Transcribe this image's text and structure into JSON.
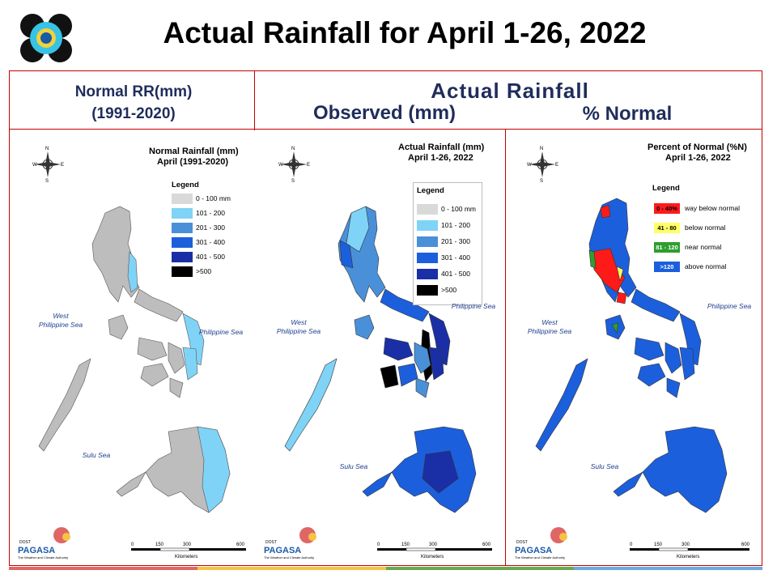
{
  "title": "Actual Rainfall for April 1-26, 2022",
  "headers": {
    "normal_line1": "Normal RR(mm)",
    "normal_line2": "(1991-2020)",
    "actual": "Actual Rainfall",
    "observed": "Observed (mm)",
    "percent": "% Normal"
  },
  "panels": {
    "normal": {
      "map_title_line1": "Normal Rainfall (mm)",
      "map_title_line2": "April (1991-2020)",
      "legend_title": "Legend",
      "legend": [
        {
          "label": "0 - 100 mm",
          "color": "#d9d9d9"
        },
        {
          "label": "101 - 200",
          "color": "#7fd3f7"
        },
        {
          "label": "201 - 300",
          "color": "#4a90d9"
        },
        {
          "label": "301 - 400",
          "color": "#1c5fdc"
        },
        {
          "label": "401 - 500",
          "color": "#1a2fa6"
        },
        {
          "label": ">500",
          "color": "#000000"
        }
      ],
      "seas": {
        "west": "West\nPhilippine Sea",
        "east": "Philippine Sea",
        "south": "Sulu Sea"
      }
    },
    "actual": {
      "map_title_line1": "Actual Rainfall (mm)",
      "map_title_line2": "April 1-26, 2022",
      "legend_title": "Legend",
      "legend": [
        {
          "label": "0 - 100 mm",
          "color": "#d9d9d9"
        },
        {
          "label": "101 - 200",
          "color": "#7fd3f7"
        },
        {
          "label": "201 - 300",
          "color": "#4a90d9"
        },
        {
          "label": "301 - 400",
          "color": "#1c5fdc"
        },
        {
          "label": "401 - 500",
          "color": "#1a2fa6"
        },
        {
          "label": ">500",
          "color": "#000000"
        }
      ],
      "seas": {
        "west": "West\nPhilippine Sea",
        "east": "Philippine Sea",
        "south": "Sulu Sea"
      }
    },
    "percent": {
      "map_title_line1": "Percent of Normal (%N)",
      "map_title_line2": "April 1-26, 2022",
      "legend_title": "Legend",
      "legend": [
        {
          "range": "0 - 40%",
          "label": "way below normal",
          "color": "#ff1a1a"
        },
        {
          "range": "41 - 80",
          "label": "below normal",
          "color": "#ffff66"
        },
        {
          "range": "81 - 120",
          "label": "near normal",
          "color": "#2e9e2e"
        },
        {
          "range": ">120",
          "label": "above normal",
          "color": "#1c5fdc"
        }
      ],
      "seas": {
        "west": "West\nPhilippine Sea",
        "east": "Philippine Sea",
        "south": "Sulu Sea"
      }
    }
  },
  "scale": {
    "ticks": [
      "0",
      "150",
      "300",
      "600"
    ],
    "unit": "Kilometers"
  },
  "compass": {
    "n": "N",
    "e": "E",
    "s": "S",
    "w": "W"
  },
  "agency": {
    "line1": "DOST",
    "line2": "PAGASA",
    "tagline": "The Weather and Climate Authority"
  },
  "colors": {
    "frame": "#c00000",
    "header_text": "#1f2d5c",
    "band": [
      "#e06666",
      "#f4c542",
      "#6aa84f",
      "#6fa8dc"
    ]
  }
}
